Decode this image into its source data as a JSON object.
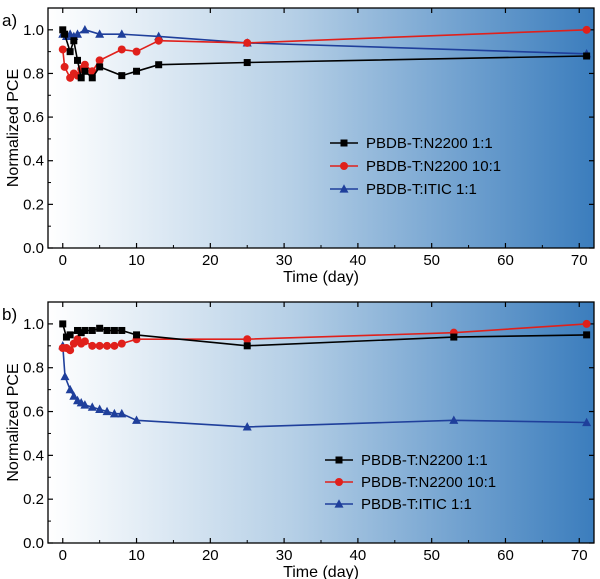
{
  "chart_data": [
    {
      "panel_label": "a)",
      "type": "line",
      "xlabel": "Time (day)",
      "ylabel": "Normalized PCE",
      "xlim": [
        -2,
        72
      ],
      "ylim": [
        0.0,
        1.1
      ],
      "xticks": [
        0,
        10,
        20,
        30,
        40,
        50,
        60,
        70
      ],
      "yticks": [
        0.0,
        0.2,
        0.4,
        0.6,
        0.8,
        1.0
      ],
      "xtick_labels": [
        "0",
        "10",
        "20",
        "30",
        "40",
        "50",
        "60",
        "70"
      ],
      "ytick_labels": [
        "0.0",
        "0.2",
        "0.4",
        "0.6",
        "0.8",
        "1.0"
      ],
      "legend_position": "center-right",
      "background": "white-to-blue horizontal gradient",
      "series": [
        {
          "name": "PBDB-T:N2200  1:1",
          "color": "#000000",
          "marker": "square",
          "x": [
            0,
            0.25,
            1,
            1.5,
            2,
            2.5,
            3,
            4,
            5,
            8,
            10,
            13,
            25,
            71
          ],
          "y": [
            1.0,
            0.98,
            0.9,
            0.95,
            0.86,
            0.78,
            0.81,
            0.78,
            0.83,
            0.79,
            0.81,
            0.84,
            0.85,
            0.88
          ]
        },
        {
          "name": "PBDB-T:N2200  10:1",
          "color": "#e0201b",
          "marker": "circle",
          "x": [
            0,
            0.25,
            1,
            1.5,
            2,
            2.5,
            3,
            4,
            5,
            8,
            10,
            13,
            25,
            71
          ],
          "y": [
            0.91,
            0.83,
            0.78,
            0.8,
            0.79,
            0.82,
            0.84,
            0.81,
            0.86,
            0.91,
            0.9,
            0.95,
            0.94,
            1.0
          ]
        },
        {
          "name": "PBDB-T:ITIC  1:1",
          "color": "#1f3f9b",
          "marker": "triangle",
          "x": [
            0,
            0.5,
            1,
            1.5,
            2,
            3,
            5,
            8,
            13,
            25,
            71
          ],
          "y": [
            0.98,
            0.97,
            0.98,
            0.97,
            0.98,
            1.0,
            0.98,
            0.98,
            0.97,
            0.94,
            0.89
          ]
        }
      ]
    },
    {
      "panel_label": "b)",
      "type": "line",
      "xlabel": "Time (day)",
      "ylabel": "Normalized PCE",
      "xlim": [
        -2,
        72
      ],
      "ylim": [
        0.0,
        1.1
      ],
      "xticks": [
        0,
        10,
        20,
        30,
        40,
        50,
        60,
        70
      ],
      "yticks": [
        0.0,
        0.2,
        0.4,
        0.6,
        0.8,
        1.0
      ],
      "xtick_labels": [
        "0",
        "10",
        "20",
        "30",
        "40",
        "50",
        "60",
        "70"
      ],
      "ytick_labels": [
        "0.0",
        "0.2",
        "0.4",
        "0.6",
        "0.8",
        "1.0"
      ],
      "legend_position": "bottom-right",
      "background": "white-to-blue horizontal gradient",
      "series": [
        {
          "name": "PBDB-T:N2200  1:1",
          "color": "#000000",
          "marker": "square",
          "x": [
            0,
            0.5,
            1,
            2,
            2.5,
            3,
            4,
            5,
            6,
            7,
            8,
            10,
            25,
            53,
            71
          ],
          "y": [
            1.0,
            0.94,
            0.95,
            0.97,
            0.96,
            0.97,
            0.97,
            0.98,
            0.97,
            0.97,
            0.97,
            0.95,
            0.9,
            0.94,
            0.95
          ]
        },
        {
          "name": "PBDB-T:N2200  10:1",
          "color": "#e0201b",
          "marker": "circle",
          "x": [
            0,
            0.5,
            1,
            1.5,
            2,
            2.5,
            3,
            4,
            5,
            6,
            7,
            8,
            10,
            25,
            53,
            71
          ],
          "y": [
            0.89,
            0.89,
            0.88,
            0.91,
            0.93,
            0.91,
            0.92,
            0.9,
            0.9,
            0.9,
            0.9,
            0.91,
            0.93,
            0.93,
            0.96,
            1.0
          ]
        },
        {
          "name": "PBDB-T:ITIC  1:1",
          "color": "#1f3f9b",
          "marker": "triangle",
          "x": [
            0,
            0.3,
            1,
            1.5,
            2,
            2.5,
            3,
            4,
            5,
            6,
            7,
            8,
            10,
            25,
            53,
            71
          ],
          "y": [
            0.9,
            0.76,
            0.7,
            0.67,
            0.65,
            0.64,
            0.63,
            0.62,
            0.61,
            0.6,
            0.59,
            0.59,
            0.56,
            0.53,
            0.56,
            0.55
          ]
        }
      ]
    }
  ]
}
